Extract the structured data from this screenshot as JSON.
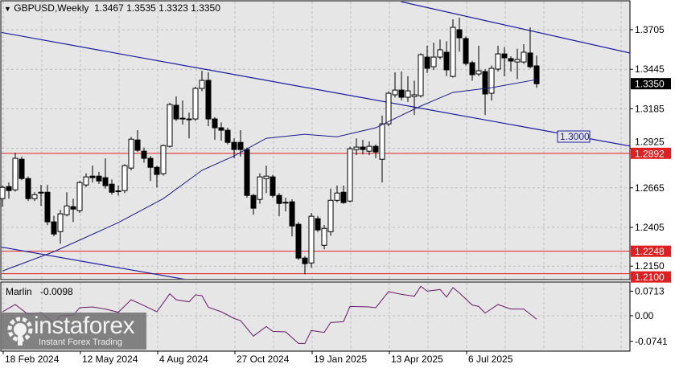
{
  "header": {
    "symbol": "GBPUSD,Weekly",
    "ohlc": "1.3467 1.3535 1.3323 1.3350"
  },
  "colors": {
    "background": "#e6e6e6",
    "grid": "#bdbdbd",
    "trendline": "#1a1aa0",
    "ma": "#1a1a8c",
    "level": "#e02020",
    "bull": "#ffffff",
    "bear": "#000000",
    "oscillator": "#6a1a6a"
  },
  "price_axis": {
    "ticks": [
      "1.3705",
      "1.3445",
      "1.3185",
      "1.2925",
      "1.2665",
      "1.2405",
      "1.2150"
    ],
    "current_price": "1.3350",
    "level_labels": [
      "1.2892",
      "1.2248",
      "1.2100"
    ]
  },
  "levels": [
    1.2892,
    1.2248,
    1.21
  ],
  "trendline_label": "1.3000",
  "time_axis": {
    "labels": [
      "18 Feb 2024",
      "12 May 2024",
      "4 Aug 2024",
      "27 Oct 2024",
      "19 Jan 2025",
      "13 Apr 2025",
      "6 Jul 2025"
    ]
  },
  "chart_data": {
    "type": "candlestick",
    "candles_ohlc": [
      [
        1.2594,
        1.268,
        1.254,
        1.2668
      ],
      [
        1.2673,
        1.27,
        1.2594,
        1.2647
      ],
      [
        1.2652,
        1.2896,
        1.264,
        1.2859
      ],
      [
        1.2853,
        1.287,
        1.2715,
        1.2726
      ],
      [
        1.2726,
        1.274,
        1.2578,
        1.2594
      ],
      [
        1.2594,
        1.2636,
        1.2578,
        1.262
      ],
      [
        1.2636,
        1.2684,
        1.2546,
        1.2631
      ],
      [
        1.2636,
        1.2684,
        1.2419,
        1.2441
      ],
      [
        1.2441,
        1.248,
        1.2346,
        1.2361
      ],
      [
        1.2377,
        1.252,
        1.2298,
        1.2494
      ],
      [
        1.2488,
        1.2636,
        1.2478,
        1.2546
      ],
      [
        1.2541,
        1.2594,
        1.244,
        1.2525
      ],
      [
        1.2515,
        1.271,
        1.25,
        1.27
      ],
      [
        1.2684,
        1.276,
        1.267,
        1.2737
      ],
      [
        1.2742,
        1.2811,
        1.27,
        1.2732
      ],
      [
        1.2742,
        1.277,
        1.269,
        1.271
      ],
      [
        1.2732,
        1.2859,
        1.266,
        1.2679
      ],
      [
        1.2689,
        1.272,
        1.262,
        1.2636
      ],
      [
        1.2645,
        1.268,
        1.2615,
        1.2641
      ],
      [
        1.2647,
        1.282,
        1.263,
        1.2811
      ],
      [
        1.2795,
        1.3,
        1.278,
        1.2985
      ],
      [
        1.298,
        1.3044,
        1.29,
        1.2912
      ],
      [
        1.2906,
        1.293,
        1.283,
        1.2859
      ],
      [
        1.2859,
        1.2875,
        1.271,
        1.28
      ],
      [
        1.28,
        1.281,
        1.2668,
        1.2753
      ],
      [
        1.2758,
        1.295,
        1.2745,
        1.2943
      ],
      [
        1.2938,
        1.3225,
        1.293,
        1.3213
      ],
      [
        1.3208,
        1.3266,
        1.3105,
        1.3118
      ],
      [
        1.3123,
        1.324,
        1.3081,
        1.312
      ],
      [
        1.3118,
        1.316,
        1.299,
        1.3115
      ],
      [
        1.3118,
        1.333,
        1.3105,
        1.3319
      ],
      [
        1.3319,
        1.3435,
        1.33,
        1.3372
      ],
      [
        1.3372,
        1.3425,
        1.307,
        1.3118
      ],
      [
        1.3118,
        1.313,
        1.298,
        1.306
      ],
      [
        1.306,
        1.3095,
        1.2975,
        1.3044
      ],
      [
        1.3044,
        1.306,
        1.295,
        1.2964
      ],
      [
        1.2964,
        1.299,
        1.286,
        1.2917
      ],
      [
        1.2964,
        1.3044,
        1.287,
        1.2917
      ],
      [
        1.2917,
        1.293,
        1.26,
        1.2615
      ],
      [
        1.2615,
        1.2625,
        1.2488,
        1.2531
      ],
      [
        1.2589,
        1.276,
        1.256,
        1.2737
      ],
      [
        1.2726,
        1.2811,
        1.263,
        1.2742
      ],
      [
        1.2737,
        1.275,
        1.26,
        1.2615
      ],
      [
        1.2615,
        1.263,
        1.2478,
        1.2562
      ],
      [
        1.257,
        1.26,
        1.251,
        1.2566
      ],
      [
        1.2573,
        1.259,
        1.2346,
        1.2414
      ],
      [
        1.2425,
        1.244,
        1.219,
        1.2203
      ],
      [
        1.2203,
        1.2215,
        1.2097,
        1.2166
      ],
      [
        1.2171,
        1.25,
        1.214,
        1.2478
      ],
      [
        1.2462,
        1.248,
        1.2375,
        1.2388
      ],
      [
        1.2287,
        1.242,
        1.226,
        1.2398
      ],
      [
        1.2377,
        1.266,
        1.235,
        1.2583
      ],
      [
        1.2583,
        1.268,
        1.257,
        1.2631
      ],
      [
        1.2636,
        1.268,
        1.256,
        1.2568
      ],
      [
        1.2578,
        1.2935,
        1.257,
        1.2922
      ],
      [
        1.2917,
        1.299,
        1.288,
        1.2933
      ],
      [
        1.2933,
        1.298,
        1.2885,
        1.2917
      ],
      [
        1.2906,
        1.297,
        1.288,
        1.2938
      ],
      [
        1.2938,
        1.295,
        1.286,
        1.2901
      ],
      [
        1.2853,
        1.314,
        1.27,
        1.3086
      ],
      [
        1.3086,
        1.33,
        1.307,
        1.3287
      ],
      [
        1.3277,
        1.3425,
        1.326,
        1.3308
      ],
      [
        1.3308,
        1.343,
        1.324,
        1.3261
      ],
      [
        1.3261,
        1.34,
        1.323,
        1.3303
      ],
      [
        1.3266,
        1.337,
        1.3144,
        1.3277
      ],
      [
        1.3271,
        1.355,
        1.326,
        1.3541
      ],
      [
        1.3525,
        1.36,
        1.342,
        1.3451
      ],
      [
        1.3462,
        1.362,
        1.344,
        1.3525
      ],
      [
        1.3525,
        1.364,
        1.351,
        1.3573
      ],
      [
        1.3557,
        1.363,
        1.34,
        1.3441
      ],
      [
        1.3398,
        1.3774,
        1.339,
        1.3721
      ],
      [
        1.3705,
        1.3784,
        1.356,
        1.3652
      ],
      [
        1.3647,
        1.366,
        1.347,
        1.3483
      ],
      [
        1.3488,
        1.35,
        1.337,
        1.3409
      ],
      [
        1.3414,
        1.36,
        1.34,
        1.3435
      ],
      [
        1.343,
        1.3445,
        1.3144,
        1.3282
      ],
      [
        1.3287,
        1.347,
        1.324,
        1.3451
      ],
      [
        1.3446,
        1.36,
        1.343,
        1.3546
      ],
      [
        1.3546,
        1.359,
        1.34,
        1.352
      ],
      [
        1.3515,
        1.353,
        1.343,
        1.3499
      ],
      [
        1.3493,
        1.358,
        1.338,
        1.3509
      ],
      [
        1.3493,
        1.361,
        1.348,
        1.3557
      ],
      [
        1.3552,
        1.3721,
        1.345,
        1.3462
      ],
      [
        1.3467,
        1.3535,
        1.3323,
        1.335
      ]
    ],
    "moving_average": [
      [
        0,
        1.2118
      ],
      [
        8,
        1.2245
      ],
      [
        18,
        1.2436
      ],
      [
        25,
        1.2594
      ],
      [
        31,
        1.278
      ],
      [
        36,
        1.2875
      ],
      [
        41,
        1.2991
      ],
      [
        47,
        1.3017
      ],
      [
        52,
        1.3001
      ],
      [
        58,
        1.306
      ],
      [
        65,
        1.3203
      ],
      [
        70,
        1.3293
      ],
      [
        76,
        1.3324
      ],
      [
        83,
        1.3377
      ]
    ],
    "trendlines": [
      [
        [
          61.9,
          1.389
        ],
        [
          104,
          1.349
        ]
      ],
      [
        [
          -0.4,
          1.3689
        ],
        [
          104,
          1.289
        ]
      ],
      [
        [
          -0.4,
          1.2277
        ],
        [
          104,
          1.15
        ]
      ]
    ],
    "ylim": [
      1.205,
      1.39
    ],
    "oscillator": {
      "name": "Marlin",
      "value": "-0.0098",
      "ticks": [
        "0.0713",
        "0.00",
        "-0.0741"
      ],
      "points": [
        [
          0,
          0.0116
        ],
        [
          2,
          0.0326
        ],
        [
          4,
          0.0039
        ],
        [
          6,
          0.0093
        ],
        [
          8,
          -0.0217
        ],
        [
          9,
          0.0
        ],
        [
          11,
          0.0016
        ],
        [
          12,
          0.0233
        ],
        [
          14,
          0.0256
        ],
        [
          16,
          0.0194
        ],
        [
          18,
          0.0101
        ],
        [
          20,
          0.0465
        ],
        [
          22,
          0.0295
        ],
        [
          24,
          0.0116
        ],
        [
          26,
          0.0636
        ],
        [
          27,
          0.0465
        ],
        [
          29,
          0.0403
        ],
        [
          30,
          0.0605
        ],
        [
          31,
          0.0581
        ],
        [
          32,
          0.0248
        ],
        [
          34,
          0.0116
        ],
        [
          36,
          -0.0078
        ],
        [
          37,
          -0.014
        ],
        [
          39,
          -0.0589
        ],
        [
          41,
          -0.031
        ],
        [
          42,
          -0.045
        ],
        [
          44,
          -0.0465
        ],
        [
          46,
          -0.08
        ],
        [
          47,
          -0.08
        ],
        [
          48,
          -0.0426
        ],
        [
          50,
          -0.0481
        ],
        [
          51,
          -0.0194
        ],
        [
          53,
          -0.0171
        ],
        [
          54,
          0.0271
        ],
        [
          57,
          0.0256
        ],
        [
          58,
          0.0233
        ],
        [
          60,
          0.0698
        ],
        [
          62,
          0.062
        ],
        [
          64,
          0.0566
        ],
        [
          65,
          0.0853
        ],
        [
          66,
          0.0713
        ],
        [
          68,
          0.076
        ],
        [
          69,
          0.0543
        ],
        [
          70,
          0.0814
        ],
        [
          71,
          0.0659
        ],
        [
          73,
          0.031
        ],
        [
          74,
          0.0271
        ],
        [
          75,
          0.0078
        ],
        [
          77,
          0.0326
        ],
        [
          79,
          0.0194
        ],
        [
          81,
          0.0194
        ],
        [
          83,
          -0.0098
        ]
      ]
    }
  },
  "watermark": {
    "brand": "instaforex",
    "tagline": "Instant Forex Trading"
  }
}
